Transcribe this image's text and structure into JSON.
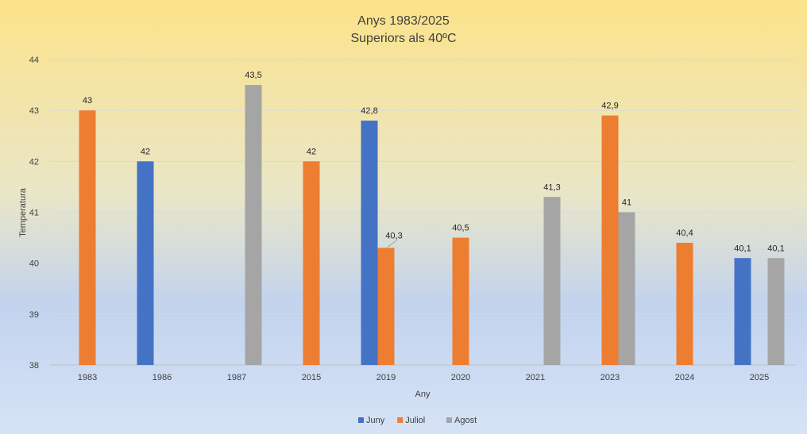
{
  "chart_data": {
    "type": "bar",
    "title": "Anys 1983/2025",
    "subtitle": "Superiors als 40ºC",
    "xlabel": "Any",
    "ylabel": "Temperatura",
    "ylim": [
      38,
      44
    ],
    "yticks": [
      "38",
      "39",
      "40",
      "41",
      "42",
      "43",
      "44"
    ],
    "grid": true,
    "legend_position": "bottom",
    "categories": [
      "1983",
      "1986",
      "1987",
      "2015",
      "2019",
      "2020",
      "2021",
      "2023",
      "2024",
      "2025"
    ],
    "series": [
      {
        "name": "Juny",
        "color": "#4472C4",
        "values": [
          null,
          42,
          null,
          null,
          42.8,
          null,
          null,
          null,
          null,
          40.1
        ],
        "labels": [
          null,
          "42",
          null,
          null,
          "42,8",
          null,
          null,
          null,
          null,
          "40,1"
        ]
      },
      {
        "name": "Juliol",
        "color": "#ED7D31",
        "values": [
          43,
          null,
          null,
          42,
          40.3,
          40.5,
          null,
          42.9,
          40.4,
          null
        ],
        "labels": [
          "43",
          null,
          null,
          "42",
          "40,3",
          "40,5",
          null,
          "42,9",
          "40,4",
          null
        ]
      },
      {
        "name": "Agost",
        "color": "#A5A5A5",
        "values": [
          null,
          null,
          43.5,
          null,
          null,
          null,
          41.3,
          41,
          null,
          40.1
        ],
        "labels": [
          null,
          null,
          "43,5",
          null,
          null,
          null,
          "41,3",
          "41",
          null,
          "40,1"
        ]
      }
    ]
  }
}
